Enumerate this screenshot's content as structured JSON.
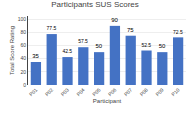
{
  "chart_data": {
    "type": "bar",
    "title": "Participants SUS Scores",
    "xlabel": "Participant",
    "ylabel": "Total Score Rating",
    "categories": [
      "P01",
      "P02",
      "P03",
      "P04",
      "P05",
      "P06",
      "P07",
      "P08",
      "P09",
      "P10"
    ],
    "values": [
      35,
      77.5,
      42.5,
      57.5,
      50,
      90,
      75,
      52.5,
      50,
      72.5
    ],
    "color": "#4472C4",
    "ylim": [
      0,
      105
    ],
    "yticks": [
      0,
      20,
      40,
      60,
      80,
      100
    ],
    "grid": true,
    "data_labels": true
  }
}
